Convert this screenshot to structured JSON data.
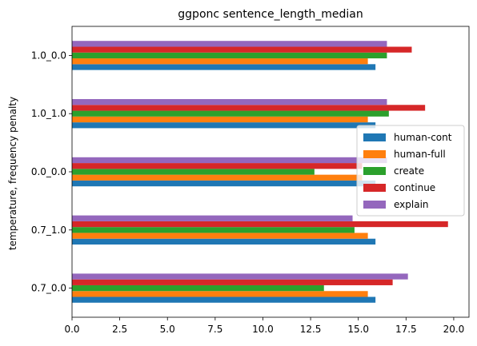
{
  "chart_data": {
    "type": "bar",
    "orientation": "horizontal",
    "title": "ggponc sentence_length_median",
    "xlabel": "",
    "ylabel": "temperature, frequency penalty",
    "categories": [
      "0.7_0.0",
      "0.7_1.0",
      "0.0_0.0",
      "1.0_1.0",
      "1.0_0.0"
    ],
    "xlim": [
      0,
      20.8
    ],
    "xticks": [
      0.0,
      2.5,
      5.0,
      7.5,
      10.0,
      12.5,
      15.0,
      17.5,
      20.0
    ],
    "xtick_labels": [
      "0.0",
      "2.5",
      "5.0",
      "7.5",
      "10.0",
      "12.5",
      "15.0",
      "17.5",
      "20.0"
    ],
    "series": [
      {
        "name": "human-cont",
        "color": "#1f77b4",
        "values": [
          15.9,
          15.9,
          15.9,
          15.9,
          15.9
        ]
      },
      {
        "name": "human-full",
        "color": "#ff7f0e",
        "values": [
          15.5,
          15.5,
          15.2,
          15.5,
          15.5
        ]
      },
      {
        "name": "create",
        "color": "#2ca02c",
        "values": [
          13.2,
          14.8,
          12.7,
          16.6,
          16.5
        ]
      },
      {
        "name": "continue",
        "color": "#d62728",
        "values": [
          16.8,
          19.7,
          15.2,
          18.5,
          17.8
        ]
      },
      {
        "name": "explain",
        "color": "#9467bd",
        "values": [
          17.6,
          14.7,
          16.5,
          16.5,
          16.5
        ]
      }
    ],
    "legend_position": "center-right",
    "grid": false
  }
}
